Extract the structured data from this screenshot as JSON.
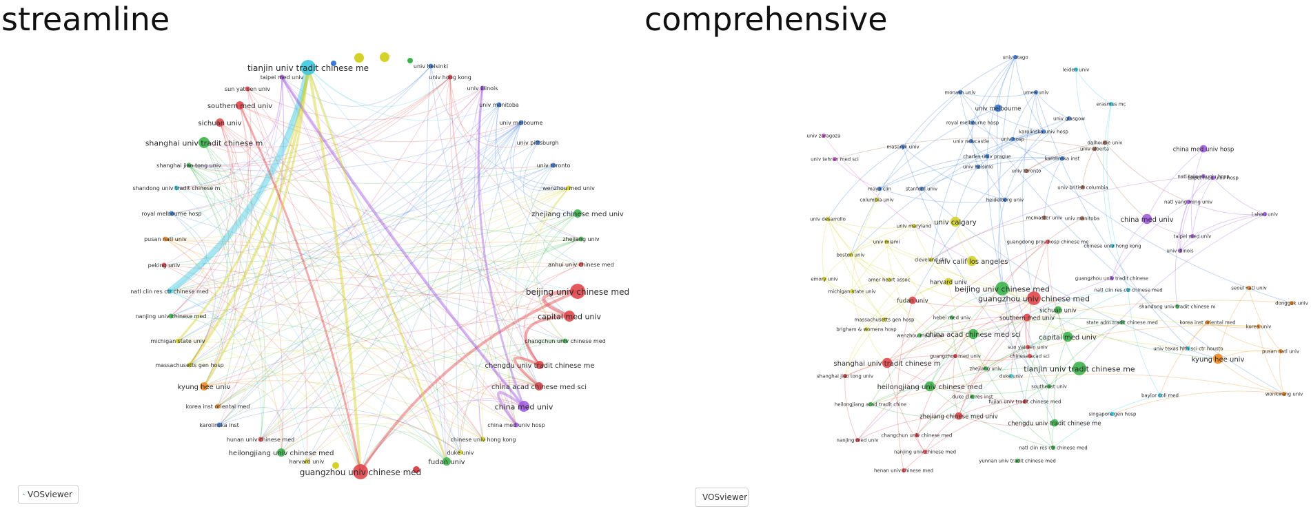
{
  "panels": {
    "left_title": "streamline",
    "right_title": "comprehensive"
  },
  "badges": {
    "left": "VOSviewer",
    "right": "VOSviewer",
    "logo_icon": "vosviewer-logo-icon"
  },
  "cluster_colors": {
    "red": "#e0474c",
    "green": "#3cb44b",
    "blue": "#3a7bd5",
    "yellow": "#d4d12a",
    "purple": "#a35ee0",
    "cyan": "#3fc9e0",
    "orange": "#f08a24",
    "pink": "#d65fd3",
    "brown": "#a5694f",
    "lime": "#9acd32"
  },
  "left_nodes": [
    {
      "label": "tianjin univ tradit chinese me",
      "cluster": "cyan",
      "size": "lg"
    },
    {
      "label": "univ helsinki",
      "cluster": "blue",
      "size": "xs"
    },
    {
      "label": "taipei med univ",
      "cluster": "purple",
      "size": "xs"
    },
    {
      "label": "univ hong kong",
      "cluster": "red",
      "size": "xs"
    },
    {
      "label": "sun yat sen univ",
      "cluster": "red",
      "size": "xs"
    },
    {
      "label": "univ illinois",
      "cluster": "purple",
      "size": "xs"
    },
    {
      "label": "southern med univ",
      "cluster": "red",
      "size": "sm"
    },
    {
      "label": "univ manitoba",
      "cluster": "blue",
      "size": "xs"
    },
    {
      "label": "sichuan univ",
      "cluster": "red",
      "size": "sm"
    },
    {
      "label": "univ melbourne",
      "cluster": "blue",
      "size": "xs"
    },
    {
      "label": "shanghai univ tradit chinese m",
      "cluster": "green",
      "size": "md"
    },
    {
      "label": "univ pittsburgh",
      "cluster": "blue",
      "size": "xs"
    },
    {
      "label": "shanghai jiao tong univ",
      "cluster": "green",
      "size": "xs"
    },
    {
      "label": "univ toronto",
      "cluster": "blue",
      "size": "xs"
    },
    {
      "label": "shandong univ tradit chinese m",
      "cluster": "cyan",
      "size": "xs"
    },
    {
      "label": "wenzhou med univ",
      "cluster": "yellow",
      "size": "xs"
    },
    {
      "label": "royal melbourne hosp",
      "cluster": "blue",
      "size": "xs"
    },
    {
      "label": "zhejiang chinese med univ",
      "cluster": "green",
      "size": "sm"
    },
    {
      "label": "pusan natl univ",
      "cluster": "orange",
      "size": "xs"
    },
    {
      "label": "zhejiang univ",
      "cluster": "green",
      "size": "xs"
    },
    {
      "label": "peking univ",
      "cluster": "red",
      "size": "xs"
    },
    {
      "label": "anhui univ chinese med",
      "cluster": "red",
      "size": "xs"
    },
    {
      "label": "natl clin res ctr chinese med",
      "cluster": "cyan",
      "size": "xs"
    },
    {
      "label": "beijing univ chinese med",
      "cluster": "red",
      "size": "lg"
    },
    {
      "label": "nanjing univ chinese med",
      "cluster": "green",
      "size": "xs"
    },
    {
      "label": "capital med univ",
      "cluster": "red",
      "size": "md"
    },
    {
      "label": "michigan state univ",
      "cluster": "yellow",
      "size": "xs"
    },
    {
      "label": "changchun univ chinese med",
      "cluster": "green",
      "size": "xs"
    },
    {
      "label": "massachusetts gen hosp",
      "cluster": "yellow",
      "size": "xs"
    },
    {
      "label": "chengdu univ tradit chinese me",
      "cluster": "red",
      "size": "sm"
    },
    {
      "label": "kyung hee univ",
      "cluster": "orange",
      "size": "sm"
    },
    {
      "label": "china acad chinese med sci",
      "cluster": "red",
      "size": "sm"
    },
    {
      "label": "korea inst oriental med",
      "cluster": "orange",
      "size": "xs"
    },
    {
      "label": "china med univ",
      "cluster": "purple",
      "size": "md"
    },
    {
      "label": "karolinska inst",
      "cluster": "blue",
      "size": "xs"
    },
    {
      "label": "china med univ hosp",
      "cluster": "purple",
      "size": "xs"
    },
    {
      "label": "hunan univ chinese med",
      "cluster": "red",
      "size": "xs"
    },
    {
      "label": "chinese univ hong kong",
      "cluster": "yellow",
      "size": "xs"
    },
    {
      "label": "heilongjiang univ chinese med",
      "cluster": "green",
      "size": "sm"
    },
    {
      "label": "duke univ",
      "cluster": "yellow",
      "size": "xs"
    },
    {
      "label": "harvard univ",
      "cluster": "yellow",
      "size": "xs"
    },
    {
      "label": "fudan univ",
      "cluster": "green",
      "size": "sm"
    },
    {
      "label": "guangzhou univ chinese med",
      "cluster": "red",
      "size": "lg"
    }
  ],
  "right_nodes": [
    {
      "label": "univ otago",
      "cluster": "blue",
      "size": "xs"
    },
    {
      "label": "leiden univ",
      "cluster": "cyan",
      "size": "xs"
    },
    {
      "label": "monash univ",
      "cluster": "blue",
      "size": "xs"
    },
    {
      "label": "umea univ",
      "cluster": "blue",
      "size": "xs"
    },
    {
      "label": "erasmus mc",
      "cluster": "cyan",
      "size": "xs"
    },
    {
      "label": "univ melbourne",
      "cluster": "blue",
      "size": "sm"
    },
    {
      "label": "univ glasgow",
      "cluster": "blue",
      "size": "xs"
    },
    {
      "label": "royal melbourne hosp",
      "cluster": "blue",
      "size": "xs"
    },
    {
      "label": "karolinska univ hosp",
      "cluster": "blue",
      "size": "xs"
    },
    {
      "label": "univ zaragoza",
      "cluster": "pink",
      "size": "xs"
    },
    {
      "label": "univ newcastle",
      "cluster": "blue",
      "size": "xs"
    },
    {
      "label": "univ hosp",
      "cluster": "blue",
      "size": "xs"
    },
    {
      "label": "dalhousie univ",
      "cluster": "brown",
      "size": "xs"
    },
    {
      "label": "masaryk univ",
      "cluster": "blue",
      "size": "xs"
    },
    {
      "label": "univ alberta",
      "cluster": "brown",
      "size": "xs"
    },
    {
      "label": "china med univ hosp",
      "cluster": "purple",
      "size": "sm"
    },
    {
      "label": "charles univ prague",
      "cluster": "blue",
      "size": "xs"
    },
    {
      "label": "karolinska inst",
      "cluster": "blue",
      "size": "xs"
    },
    {
      "label": "univ tehran med sci",
      "cluster": "pink",
      "size": "xs"
    },
    {
      "label": "univ helsinki",
      "cluster": "blue",
      "size": "xs"
    },
    {
      "label": "univ toronto",
      "cluster": "brown",
      "size": "xs"
    },
    {
      "label": "natl taiwan univ hosp",
      "cluster": "purple",
      "size": "xs"
    },
    {
      "label": "taipei med univ hosp",
      "cluster": "purple",
      "size": "xs"
    },
    {
      "label": "mayo clin",
      "cluster": "blue",
      "size": "xs"
    },
    {
      "label": "stanford univ",
      "cluster": "blue",
      "size": "xs"
    },
    {
      "label": "univ british columbia",
      "cluster": "brown",
      "size": "xs"
    },
    {
      "label": "columbia univ",
      "cluster": "yellow",
      "size": "xs"
    },
    {
      "label": "heidelberg univ",
      "cluster": "blue",
      "size": "xs"
    },
    {
      "label": "natl yang ming univ",
      "cluster": "purple",
      "size": "xs"
    },
    {
      "label": "univ desarrollo",
      "cluster": "yellow",
      "size": "xs"
    },
    {
      "label": "mcmaster univ",
      "cluster": "brown",
      "size": "xs"
    },
    {
      "label": "univ manitoba",
      "cluster": "brown",
      "size": "xs"
    },
    {
      "label": "i shou univ",
      "cluster": "purple",
      "size": "xs"
    },
    {
      "label": "univ calgary",
      "cluster": "yellow",
      "size": "md"
    },
    {
      "label": "china med univ",
      "cluster": "purple",
      "size": "md"
    },
    {
      "label": "univ maryland",
      "cluster": "yellow",
      "size": "xs"
    },
    {
      "label": "taipei med univ",
      "cluster": "purple",
      "size": "xs"
    },
    {
      "label": "univ miami",
      "cluster": "yellow",
      "size": "xs"
    },
    {
      "label": "guangdong prov hosp chinese me",
      "cluster": "red",
      "size": "xs"
    },
    {
      "label": "chinese univ hong kong",
      "cluster": "cyan",
      "size": "xs"
    },
    {
      "label": "univ illinois",
      "cluster": "purple",
      "size": "xs"
    },
    {
      "label": "boston univ",
      "cluster": "yellow",
      "size": "xs"
    },
    {
      "label": "cleveland clin",
      "cluster": "yellow",
      "size": "xs"
    },
    {
      "label": "univ calif los angeles",
      "cluster": "yellow",
      "size": "md"
    },
    {
      "label": "emory univ",
      "cluster": "yellow",
      "size": "xs"
    },
    {
      "label": "amer heart assoc",
      "cluster": "yellow",
      "size": "xs"
    },
    {
      "label": "harvard univ",
      "cluster": "yellow",
      "size": "sm"
    },
    {
      "label": "guangzhou univ tradit chinese",
      "cluster": "purple",
      "size": "xs"
    },
    {
      "label": "beijing univ chinese med",
      "cluster": "green",
      "size": "lg"
    },
    {
      "label": "michigan state univ",
      "cluster": "yellow",
      "size": "xs"
    },
    {
      "label": "natl clin res ctr chinese med",
      "cluster": "cyan",
      "size": "xs"
    },
    {
      "label": "seoul natl univ",
      "cluster": "orange",
      "size": "xs"
    },
    {
      "label": "fudan univ",
      "cluster": "red",
      "size": "sm"
    },
    {
      "label": "guangzhou univ chinese med",
      "cluster": "red",
      "size": "lg"
    },
    {
      "label": "sichuan univ",
      "cluster": "green",
      "size": "sm"
    },
    {
      "label": "shandong univ tradit chinese m",
      "cluster": "green",
      "size": "xs"
    },
    {
      "label": "dongguk univ",
      "cluster": "orange",
      "size": "xs"
    },
    {
      "label": "massachusetts gen hosp",
      "cluster": "yellow",
      "size": "xs"
    },
    {
      "label": "hebei med univ",
      "cluster": "green",
      "size": "xs"
    },
    {
      "label": "southern med univ",
      "cluster": "red",
      "size": "sm"
    },
    {
      "label": "state adm tradit chinese med",
      "cluster": "green",
      "size": "xs"
    },
    {
      "label": "korea inst oriental med",
      "cluster": "orange",
      "size": "xs"
    },
    {
      "label": "korea univ",
      "cluster": "orange",
      "size": "xs"
    },
    {
      "label": "brigham & womens hosp",
      "cluster": "yellow",
      "size": "xs"
    },
    {
      "label": "china acad chinese med sci",
      "cluster": "green",
      "size": "md"
    },
    {
      "label": "capital med univ",
      "cluster": "green",
      "size": "md"
    },
    {
      "label": "wenzhou med univ",
      "cluster": "green",
      "size": "xs"
    },
    {
      "label": "sun yat sen univ",
      "cluster": "red",
      "size": "xs"
    },
    {
      "label": "univ texas hlth sci ctr housto",
      "cluster": "cyan",
      "size": "xs"
    },
    {
      "label": "pusan natl univ",
      "cluster": "orange",
      "size": "xs"
    },
    {
      "label": "guangzhou med univ",
      "cluster": "red",
      "size": "xs"
    },
    {
      "label": "chinese acad sci",
      "cluster": "red",
      "size": "xs"
    },
    {
      "label": "kyung hee univ",
      "cluster": "orange",
      "size": "md"
    },
    {
      "label": "shanghai univ tradit chinese m",
      "cluster": "red",
      "size": "md"
    },
    {
      "label": "zhejiang univ",
      "cluster": "green",
      "size": "xs"
    },
    {
      "label": "tianjin univ tradit chinese me",
      "cluster": "green",
      "size": "lg"
    },
    {
      "label": "shanghai jiao tong univ",
      "cluster": "red",
      "size": "xs"
    },
    {
      "label": "duke univ",
      "cluster": "cyan",
      "size": "xs"
    },
    {
      "label": "heilongjiang univ chinese med",
      "cluster": "green",
      "size": "md"
    },
    {
      "label": "southeast univ",
      "cluster": "green",
      "size": "xs"
    },
    {
      "label": "baylor coll med",
      "cluster": "cyan",
      "size": "xs"
    },
    {
      "label": "wonkwang univ",
      "cluster": "orange",
      "size": "xs"
    },
    {
      "label": "duke clin res inst",
      "cluster": "green",
      "size": "xs"
    },
    {
      "label": "heilongjiang acad tradit chine",
      "cluster": "green",
      "size": "xs"
    },
    {
      "label": "fujian univ tradit chinese med",
      "cluster": "red",
      "size": "xs"
    },
    {
      "label": "singapore gen hosp",
      "cluster": "cyan",
      "size": "xs"
    },
    {
      "label": "zhejiang chinese med univ",
      "cluster": "red",
      "size": "sm"
    },
    {
      "label": "chengdu univ tradit chinese me",
      "cluster": "green",
      "size": "sm"
    },
    {
      "label": "changchun univ chinese med",
      "cluster": "red",
      "size": "xs"
    },
    {
      "label": "nanjing med univ",
      "cluster": "red",
      "size": "xs"
    },
    {
      "label": "natl clin res ctr chinese med",
      "cluster": "green",
      "size": "xs"
    },
    {
      "label": "nanjing univ chinese med",
      "cluster": "red",
      "size": "xs"
    },
    {
      "label": "yunnan univ tradit chinese med",
      "cluster": "green",
      "size": "xs"
    },
    {
      "label": "henan univ chinese med",
      "cluster": "red",
      "size": "xs"
    }
  ]
}
